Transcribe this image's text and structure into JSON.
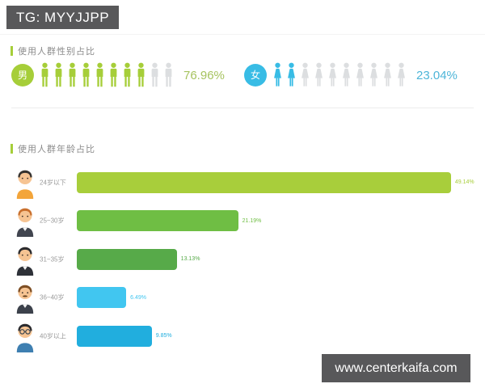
{
  "header": {
    "badge": "TG: MYYJJPP"
  },
  "watermark": {
    "text": "www.centerkaifa.com"
  },
  "colors": {
    "accent_green": "#a6ce39",
    "dark_gray": "#58585a",
    "icon_gray": "#dcdee0"
  },
  "gender_section": {
    "title": "使用人群性别占比",
    "male": {
      "label": "男",
      "percent": "76.96%",
      "value": 76.96,
      "filled_icons": 8,
      "total_icons": 10,
      "color": "#a6ce39",
      "percent_color": "#a6c35f"
    },
    "female": {
      "label": "女",
      "percent": "23.04%",
      "value": 23.04,
      "filled_icons": 2,
      "total_icons": 10,
      "color": "#38bce5",
      "percent_color": "#4db5d8"
    }
  },
  "age_section": {
    "title": "使用人群年龄占比",
    "rows": [
      {
        "label": "24岁以下",
        "percent": "49.14%",
        "value": 49.14,
        "bar_color": "#a8ce3b",
        "icon": "avatar-under-24-icon"
      },
      {
        "label": "25~30岁",
        "percent": "21.19%",
        "value": 21.19,
        "bar_color": "#6fbe44",
        "icon": "avatar-25-30-icon"
      },
      {
        "label": "31~35岁",
        "percent": "13.13%",
        "value": 13.13,
        "bar_color": "#57aa49",
        "icon": "avatar-31-35-icon"
      },
      {
        "label": "36~40岁",
        "percent": "6.49%",
        "value": 6.49,
        "bar_color": "#41c6f0",
        "icon": "avatar-36-40-icon"
      },
      {
        "label": "40岁以上",
        "percent": "9.85%",
        "value": 9.85,
        "bar_color": "#21aede",
        "icon": "avatar-over-40-icon"
      }
    ]
  },
  "chart_data": [
    {
      "type": "bar",
      "title": "使用人群性别占比",
      "categories": [
        "男",
        "女"
      ],
      "values": [
        76.96,
        23.04
      ],
      "unit": "%",
      "layout": "pictogram, 10 person icons per gender, filled proportionally",
      "colors": [
        "#a6ce39",
        "#38bce5"
      ]
    },
    {
      "type": "bar",
      "title": "使用人群年龄占比",
      "categories": [
        "24岁以下",
        "25~30岁",
        "31~35岁",
        "36~40岁",
        "40岁以上"
      ],
      "values": [
        49.14,
        21.19,
        13.13,
        6.49,
        9.85
      ],
      "unit": "%",
      "orientation": "horizontal",
      "xlim": [
        0,
        52
      ],
      "colors": [
        "#a8ce3b",
        "#6fbe44",
        "#57aa49",
        "#41c6f0",
        "#21aede"
      ]
    }
  ]
}
